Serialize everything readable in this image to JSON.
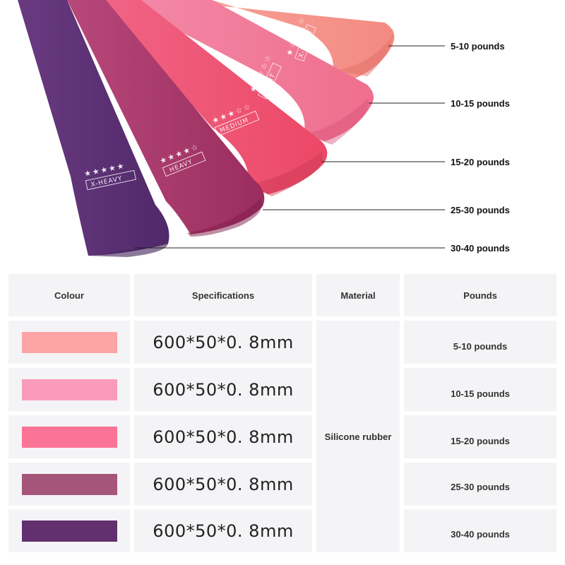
{
  "callouts": [
    "5-10 pounds",
    "10-15 pounds",
    "15-20 pounds",
    "25-30 pounds",
    "30-40 pounds"
  ],
  "bands": [
    {
      "label": "X-HEAVY",
      "stars": "★★★★★",
      "color": "#5e3574"
    },
    {
      "label": "HEAVY",
      "stars": "★★★★☆",
      "color": "#a8386a"
    },
    {
      "label": "MEDIUM",
      "stars": "★★★☆☆",
      "color": "#ee4f70"
    },
    {
      "label": "LIGHT",
      "stars": "★★☆☆☆",
      "color": "#f1779a"
    },
    {
      "label": "X-LIGHT",
      "stars": "★☆☆☆☆",
      "color": "#f79a96"
    }
  ],
  "table": {
    "headers": {
      "colour": "Colour",
      "specifications": "Specifications",
      "material": "Material",
      "pounds": "Pounds"
    },
    "material": "Silicone rubber",
    "rows": [
      {
        "color": "#fca4a6",
        "spec": "600*50*0. 8mm",
        "pounds": "5-10 pounds"
      },
      {
        "color": "#fb9bbb",
        "spec": "600*50*0. 8mm",
        "pounds": "10-15 pounds"
      },
      {
        "color": "#fb7396",
        "spec": "600*50*0. 8mm",
        "pounds": "15-20 pounds"
      },
      {
        "color": "#a6557a",
        "spec": "600*50*0. 8mm",
        "pounds": "25-30 pounds"
      },
      {
        "color": "#62306e",
        "spec": "600*50*0. 8mm",
        "pounds": "30-40 pounds"
      }
    ]
  }
}
